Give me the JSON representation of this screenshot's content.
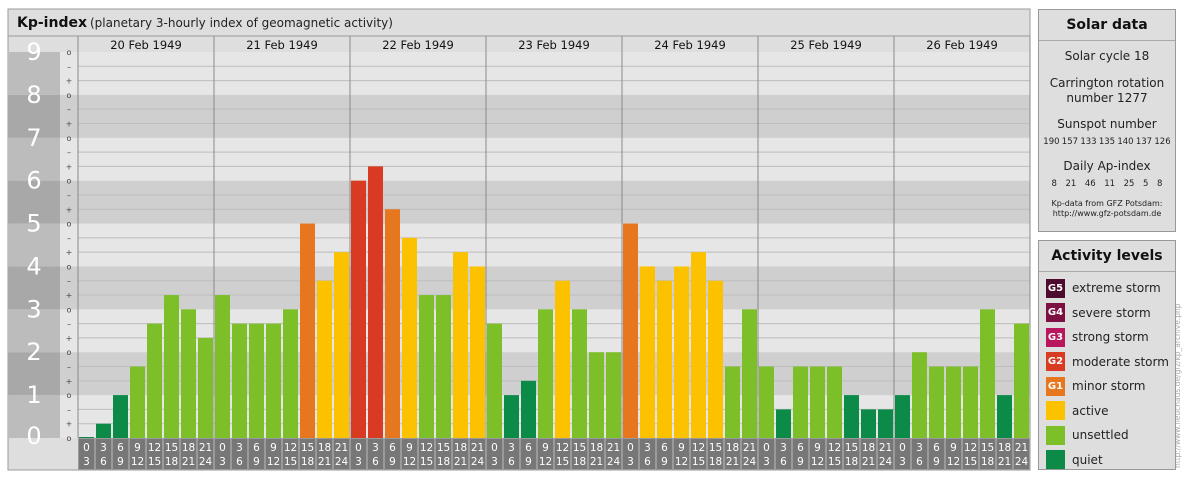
{
  "header": {
    "title": "Kp-index",
    "subtitle": "(planetary 3-hourly index of geomagnetic activity)"
  },
  "credit": "http://www.fleuchaus.de/gfz/kp_archive.php",
  "chart_data": {
    "type": "bar",
    "title": "Kp-index",
    "subtitle": "(planetary 3-hourly index of geomagnetic activity)",
    "ylim": [
      0,
      9
    ],
    "y_major_ticks": [
      "0",
      "1",
      "2",
      "3",
      "4",
      "5",
      "6",
      "7",
      "8",
      "9"
    ],
    "y_minor_marks": [
      "+",
      "o",
      "–"
    ],
    "days": [
      "20 Feb 1949",
      "21 Feb 1949",
      "22 Feb 1949",
      "23 Feb 1949",
      "24 Feb 1949",
      "25 Feb 1949",
      "26 Feb 1949"
    ],
    "intervals": [
      {
        "start": "0",
        "end": "3"
      },
      {
        "start": "3",
        "end": "6"
      },
      {
        "start": "6",
        "end": "9"
      },
      {
        "start": "9",
        "end": "12"
      },
      {
        "start": "12",
        "end": "15"
      },
      {
        "start": "15",
        "end": "18"
      },
      {
        "start": "18",
        "end": "21"
      },
      {
        "start": "21",
        "end": "24"
      }
    ],
    "values": [
      [
        0.0,
        0.333,
        1.0,
        1.667,
        2.667,
        3.333,
        3.0,
        2.333
      ],
      [
        3.333,
        2.667,
        2.667,
        2.667,
        3.0,
        5.0,
        3.667,
        4.333
      ],
      [
        6.0,
        6.333,
        5.333,
        4.667,
        3.333,
        3.333,
        4.333,
        4.0
      ],
      [
        2.667,
        1.0,
        1.333,
        3.0,
        3.667,
        3.0,
        2.0,
        2.0
      ],
      [
        5.0,
        4.0,
        3.667,
        4.0,
        4.333,
        3.667,
        1.667,
        3.0
      ],
      [
        1.667,
        0.667,
        1.667,
        1.667,
        1.667,
        1.0,
        0.667,
        0.667
      ],
      [
        1.0,
        2.0,
        1.667,
        1.667,
        1.667,
        3.0,
        1.0,
        2.667
      ]
    ],
    "grid": true,
    "legend_position": "right"
  },
  "solar": {
    "title": "Solar data",
    "cycle": "Solar cycle 18",
    "carrington_line1": "Carrington rotation",
    "carrington_line2": "number 1277",
    "sunspot_label": "Sunspot number",
    "sunspots": [
      "190",
      "157",
      "133",
      "135",
      "140",
      "137",
      "126"
    ],
    "ap_label": "Daily Ap-index",
    "ap": [
      "8",
      "21",
      "46",
      "11",
      "25",
      "5",
      "8"
    ],
    "source_line1": "Kp-data from GFZ Potsdam:",
    "source_line2": "http://www.gfz-potsdam.de"
  },
  "activity": {
    "title": "Activity levels",
    "levels": [
      {
        "code": "G5",
        "label": "extreme storm",
        "color": "#4d0a2e"
      },
      {
        "code": "G4",
        "label": "severe storm",
        "color": "#7d1040"
      },
      {
        "code": "G3",
        "label": "strong storm",
        "color": "#b8175e"
      },
      {
        "code": "G2",
        "label": "moderate storm",
        "color": "#d83a22"
      },
      {
        "code": "G1",
        "label": "minor storm",
        "color": "#e6771f"
      },
      {
        "code": "",
        "label": "active",
        "color": "#fcc200"
      },
      {
        "code": "",
        "label": "unsettled",
        "color": "#7cbf28"
      },
      {
        "code": "",
        "label": "quiet",
        "color": "#0b8a48"
      }
    ]
  }
}
